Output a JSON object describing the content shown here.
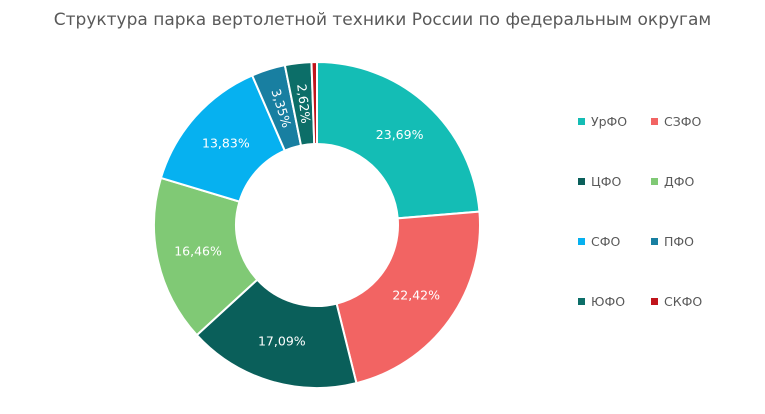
{
  "chart_data": {
    "type": "pie",
    "donut": true,
    "title": "Структура парка вертолетной техники России по федеральным округам",
    "categories": [
      "УрФО",
      "СЗФО",
      "ЦФО",
      "ДФО",
      "СФО",
      "ПФО",
      "ЮФО",
      "СКФО"
    ],
    "values": [
      23.69,
      22.42,
      17.09,
      16.46,
      13.83,
      3.35,
      2.62,
      0.54
    ],
    "labels": [
      "23,69%",
      "22,42%",
      "17,09%",
      "16,46%",
      "13,83%",
      "3,35%",
      "2,62%",
      ""
    ],
    "colors": [
      "#14bdb5",
      "#f26463",
      "#0a5f5a",
      "#80c975",
      "#06b1f0",
      "#187fa1",
      "#0c6e68",
      "#c0141b"
    ],
    "legend_position": "right"
  }
}
